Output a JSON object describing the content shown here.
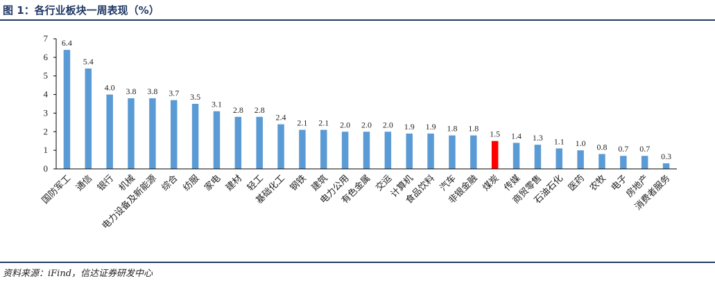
{
  "header": {
    "title": "图 1：各行业板块一周表现（%）"
  },
  "footer": {
    "source": "资料来源：iFind，信达证券研发中心"
  },
  "colors": {
    "bar": "#5b9bd5",
    "highlight": "#ff0000",
    "rule": "#1f3864",
    "axis": "#000000"
  },
  "chart_data": {
    "type": "bar",
    "title": "",
    "xlabel": "",
    "ylabel": "",
    "ylim": [
      0,
      7
    ],
    "yticks": [
      0,
      1,
      2,
      3,
      4,
      5,
      6,
      7
    ],
    "grid": false,
    "highlight_category": "煤炭",
    "categories": [
      "国防军工",
      "通信",
      "银行",
      "机械",
      "电力设备及新能源",
      "综合",
      "纺服",
      "家电",
      "建材",
      "轻工",
      "基础化工",
      "钢铁",
      "建筑",
      "电力公用",
      "有色金属",
      "交运",
      "计算机",
      "食品饮料",
      "汽车",
      "非银金融",
      "煤炭",
      "传媒",
      "商贸零售",
      "石油石化",
      "医药",
      "农牧",
      "电子",
      "房地产",
      "消费者服务"
    ],
    "values": [
      6.4,
      5.4,
      4.0,
      3.8,
      3.8,
      3.7,
      3.5,
      3.1,
      2.8,
      2.8,
      2.4,
      2.1,
      2.1,
      2.0,
      2.0,
      2.0,
      1.9,
      1.9,
      1.8,
      1.8,
      1.5,
      1.4,
      1.3,
      1.1,
      1.0,
      0.8,
      0.7,
      0.7,
      0.3
    ],
    "value_labels": [
      "6.4",
      "5.4",
      "4.0",
      "3.8",
      "3.8",
      "3.7",
      "3.5",
      "3.1",
      "2.8",
      "2.8",
      "2.4",
      "2.1",
      "2.1",
      "2.0",
      "2.0",
      "2.0",
      "1.9",
      "1.9",
      "1.8",
      "1.8",
      "1.5",
      "1.4",
      "1.3",
      "1.1",
      "1.0",
      "0.8",
      "0.7",
      "0.7",
      "0.3"
    ]
  }
}
